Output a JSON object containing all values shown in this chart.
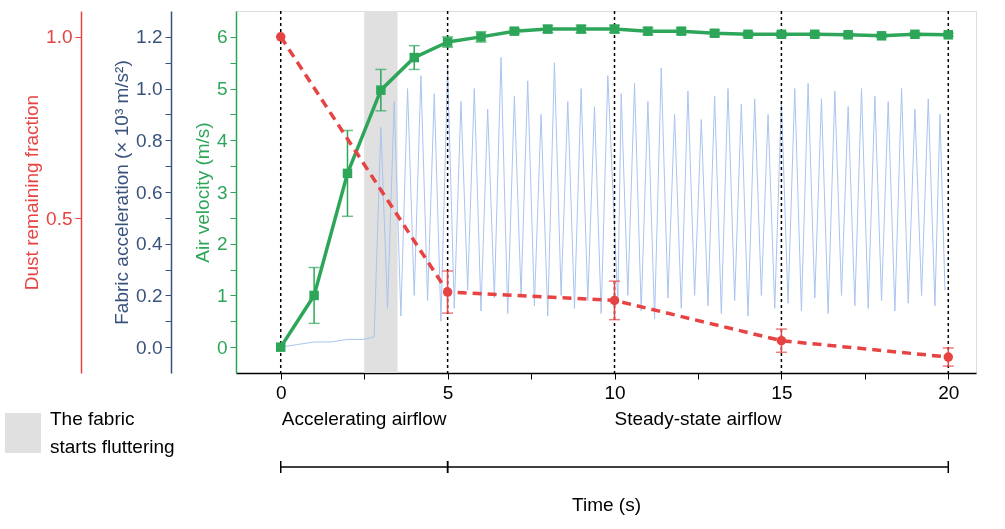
{
  "chart_data": {
    "type": "line",
    "xlabel": "Time (s)",
    "ylabel": "Air velocity (m/s)",
    "y2label": "Fabric acceleration (× 10³ m/s²)",
    "y3label": "Dust remaining fraction",
    "xlim": [
      -1.34,
      20.83
    ],
    "xticks": [
      0,
      {
        "value": 2.5,
        "label": null
      },
      5,
      {
        "value": 7.5,
        "label": null
      },
      10,
      {
        "value": 12.5,
        "label": null
      },
      15,
      {
        "value": 17.5,
        "label": null
      },
      20
    ],
    "ylim": [
      -0.5,
      6.5
    ],
    "yticks": [
      0,
      {
        "value": 0.5,
        "label": null
      },
      1,
      {
        "value": 1.5,
        "label": null
      },
      2,
      {
        "value": 2.5,
        "label": null
      },
      3,
      {
        "value": 3.5,
        "label": null
      },
      4,
      {
        "value": 4.5,
        "label": null
      },
      5,
      {
        "value": 5.5,
        "label": null
      },
      6
    ],
    "y2lim": [
      -0.1,
      1.3
    ],
    "y2ticks": [
      {
        "value": 0,
        "label": "0.0"
      },
      {
        "value": 0.1,
        "label": null
      },
      0.2,
      {
        "value": 0.3,
        "label": null
      },
      0.4,
      {
        "value": 0.5,
        "label": null
      },
      0.6,
      {
        "value": 0.7,
        "label": null
      },
      0.8,
      {
        "value": 0.9,
        "label": null
      },
      {
        "value": 1,
        "label": "1.0"
      },
      {
        "value": 1.1,
        "label": null
      },
      1.2
    ],
    "y3lim": [
      0.074,
      1.071
    ],
    "y3ticks": [
      0.5,
      {
        "value": 1,
        "label": "1.0"
      }
    ],
    "grid": false,
    "series": [
      {
        "axis": "y2",
        "color": "#a9c4f0",
        "marker": "none",
        "line_style": "solid",
        "x": [
          0,
          0.5,
          1,
          1.5,
          2,
          2.5,
          2.8,
          3.0,
          3.2,
          3.4,
          3.6,
          3.8,
          4.0,
          4.2,
          4.4,
          4.6,
          4.8,
          5.0,
          5.2,
          5.4,
          5.6,
          5.8,
          6.0,
          6.2,
          6.4,
          6.6,
          6.8,
          7.0,
          7.2,
          7.4,
          7.6,
          7.8,
          8.0,
          8.2,
          8.4,
          8.6,
          8.8,
          9.0,
          9.2,
          9.4,
          9.6,
          9.8,
          10.1,
          10.2,
          10.4,
          10.6,
          10.8,
          11.0,
          11.2,
          11.4,
          11.6,
          11.8,
          12.0,
          12.2,
          12.4,
          12.6,
          12.8,
          13.0,
          13.2,
          13.4,
          13.6,
          13.8,
          14.0,
          14.2,
          14.4,
          14.6,
          14.8,
          15.0,
          15.2,
          15.4,
          15.6,
          15.8,
          16.0,
          16.2,
          16.4,
          16.6,
          16.8,
          17.0,
          17.2,
          17.4,
          17.6,
          17.8,
          18.0,
          18.2,
          18.4,
          18.6,
          18.8,
          19.0,
          19.2,
          19.4,
          19.6,
          19.75,
          19.9
        ],
        "values": [
          0,
          0.01,
          0.02,
          0.02,
          0.03,
          0.03,
          0.04,
          0.85,
          0.15,
          0.95,
          0.12,
          1.0,
          0.2,
          1.05,
          0.18,
          0.98,
          0.1,
          1.08,
          0.15,
          0.95,
          0.22,
          1.0,
          0.14,
          0.92,
          0.19,
          1.12,
          0.13,
          0.97,
          0.2,
          1.03,
          0.16,
          0.9,
          0.12,
          1.1,
          0.2,
          0.95,
          0.15,
          1.0,
          0.18,
          0.93,
          0.13,
          1.05,
          0.17,
          0.98,
          0.2,
          1.02,
          0.14,
          0.95,
          0.11,
          1.08,
          0.19,
          0.9,
          0.15,
          0.99,
          0.2,
          0.88,
          0.16,
          0.97,
          0.13,
          1.0,
          0.18,
          0.94,
          0.12,
          0.96,
          0.2,
          0.9,
          0.15,
          0.95,
          0.17,
          1.0,
          0.14,
          1.02,
          0.19,
          0.96,
          0.13,
          0.99,
          0.2,
          0.93,
          0.16,
          1.0,
          0.15,
          0.97,
          0.18,
          0.95,
          0.14,
          1.0,
          0.17,
          0.92,
          0.2,
          0.96,
          0.16,
          0.9,
          0.22
        ]
      },
      {
        "axis": "y",
        "color": "#2ea65a",
        "marker": "square",
        "line_style": "solid",
        "x": [
          0,
          1,
          2,
          3,
          4,
          5,
          6,
          7,
          8,
          9,
          10,
          11,
          12,
          13,
          14,
          15,
          16,
          17,
          18,
          19,
          20
        ],
        "values": [
          0,
          1.0,
          3.36,
          4.97,
          5.6,
          5.9,
          6.0,
          6.11,
          6.15,
          6.15,
          6.15,
          6.11,
          6.11,
          6.07,
          6.05,
          6.05,
          6.05,
          6.04,
          6.02,
          6.05,
          6.04
        ],
        "errors": [
          null,
          0.54,
          0.83,
          0.4,
          0.23,
          0.1,
          0.1,
          0.05,
          0.07,
          0.07,
          0.07,
          0.07,
          0.06,
          0.06,
          0.04,
          0.04,
          0.03,
          0.03,
          0.03,
          0.03,
          0.03
        ]
      },
      {
        "axis": "y3",
        "color": "#e84343",
        "marker": "circle",
        "line_style": "dashed",
        "x": [
          0,
          5,
          10,
          15,
          20
        ],
        "values": [
          1.0,
          0.297,
          0.274,
          0.163,
          0.118
        ],
        "errors": [
          null,
          0.058,
          0.053,
          0.032,
          0.025
        ]
      }
    ],
    "ref_lines": [
      {
        "axis": "x",
        "value": 0,
        "label": null,
        "color": "#000000",
        "line_style": "dotted"
      },
      {
        "axis": "x",
        "value": 5,
        "label": null,
        "color": "#000000",
        "line_style": "dotted"
      },
      {
        "axis": "x",
        "value": 10,
        "label": null,
        "color": "#000000",
        "line_style": "dotted"
      },
      {
        "axis": "x",
        "value": 15,
        "label": null,
        "color": "#000000",
        "line_style": "dotted"
      },
      {
        "axis": "x",
        "value": 20,
        "label": null,
        "color": "#000000",
        "line_style": "dotted"
      }
    ],
    "bands": [
      {
        "axis": "x",
        "from": 2.5,
        "to": 3.5,
        "label": "The fabric starts fluttering",
        "color": "#e0e0e0"
      }
    ],
    "annotations": [
      "Accelerating airflow",
      "Steady-state airflow"
    ]
  }
}
